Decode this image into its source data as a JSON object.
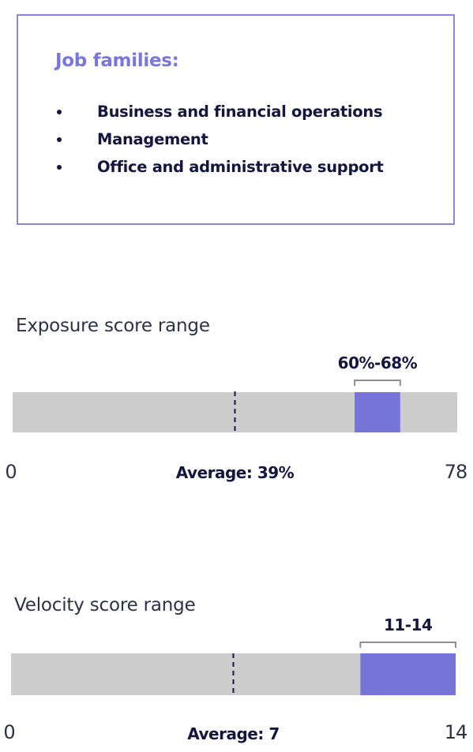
{
  "card": {
    "title": "Job families:",
    "items": [
      "Business and financial operations",
      "Management",
      "Office and administrative support"
    ]
  },
  "colors": {
    "accent": "#7774d8",
    "track": "#cdcdcd",
    "dark": "#14163d",
    "bracket": "#8f8f8f",
    "border": "#8a87d6"
  },
  "chart_data": [
    {
      "type": "bar",
      "label": "Exposure score range",
      "min": 0,
      "max": 78,
      "min_label": "0",
      "max_label": "78",
      "range": [
        60,
        68
      ],
      "range_label": "60%-68%",
      "average": 39,
      "average_label": "Average: 39%"
    },
    {
      "type": "bar",
      "label": "Velocity score range",
      "min": 0,
      "max": 14,
      "min_label": "0",
      "max_label": "14",
      "range": [
        11,
        14
      ],
      "range_label": "11-14",
      "average": 7,
      "average_label": "Average: 7"
    }
  ]
}
